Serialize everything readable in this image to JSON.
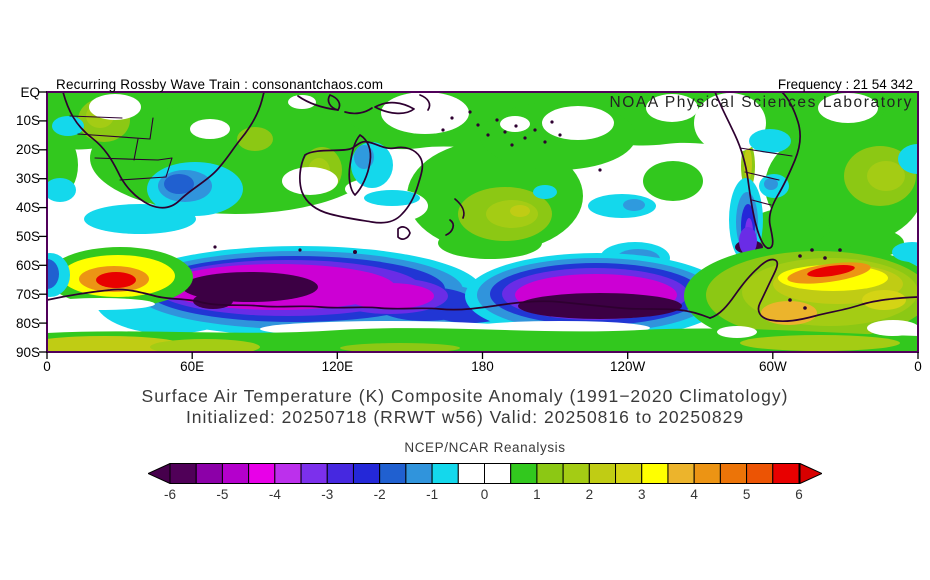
{
  "header": {
    "watermark": "Recurring Rossby Wave Train : consonantchaos.com",
    "frequency": "Frequency : 21 54 342",
    "organization": "NOAA Physical Sciences Laboratory"
  },
  "titles": {
    "line1": "Surface Air Temperature (K) Composite Anomaly (1991−2020 Climatology)",
    "line2": "Initialized: 20250718 (RRWT w56) Valid: 20250816 to 20250829"
  },
  "map": {
    "lat_labels": [
      "EQ",
      "10S",
      "20S",
      "30S",
      "40S",
      "50S",
      "60S",
      "70S",
      "80S",
      "90S"
    ],
    "lon_labels": [
      "0",
      "60E",
      "120E",
      "180",
      "120W",
      "60W",
      "0"
    ],
    "frame_color": "#50005a",
    "coastline_color": "#2e0030"
  },
  "colorbar": {
    "label": "NCEP/NCAR Reanalysis",
    "tick_labels": [
      "-6",
      "-5",
      "-4",
      "-3",
      "-2",
      "-1",
      "0",
      "1",
      "2",
      "3",
      "4",
      "5",
      "6"
    ],
    "cell_colors": [
      "#500058",
      "#8c00a8",
      "#b400cc",
      "#e800e8",
      "#bc30ec",
      "#7c30ec",
      "#4628e0",
      "#2428d8",
      "#2060d0",
      "#3094dc",
      "#14d8ec",
      "#ffffff",
      "#ffffff",
      "#32c81e",
      "#8cc814",
      "#a4cc14",
      "#c0cc14",
      "#d4d414",
      "#ffff00",
      "#ecb42c",
      "#ec9414",
      "#ec7408",
      "#ec5404",
      "#e80000"
    ],
    "arrow_left_color": "#46004c",
    "arrow_right_color": "#d80000"
  },
  "chart_data": {
    "type": "heatmap",
    "subtype": "filled-contour geographic anomaly map, Southern Hemisphere (cylindrical lat-lon)",
    "title": "Surface Air Temperature (K) Composite Anomaly (1991−2020 Climatology)",
    "subtitle": "Initialized: 20250718 (RRWT w56) Valid: 20250816 to 20250829",
    "source": "NCEP/NCAR Reanalysis",
    "organization": "NOAA Physical Sciences Laboratory",
    "watermark": "Recurring Rossby Wave Train : consonantchaos.com",
    "frequency": "21 54 342",
    "units": "K",
    "lat_axis": {
      "ticks": [
        "EQ",
        "10S",
        "20S",
        "30S",
        "40S",
        "50S",
        "60S",
        "70S",
        "80S",
        "90S"
      ],
      "range_deg": [
        0,
        -90
      ]
    },
    "lon_axis": {
      "ticks": [
        "0",
        "60E",
        "120E",
        "180",
        "120W",
        "60W",
        "0"
      ],
      "range_deg": [
        0,
        360
      ]
    },
    "colorbar": {
      "range": [
        -6,
        6
      ],
      "contour_interval": 0.5,
      "arrows_beyond_range": true
    },
    "features": [
      {
        "region": "Tropics and subtropics (EQ to ~35S, most longitudes)",
        "anomaly_K": "+0.5 to +1 (green) with scattered neutral white gaps"
      },
      {
        "region": "Mid-latitude band 40S-60S",
        "anomaly_K": "mostly 0 (white) with -0.5 to -1 cyan patches"
      },
      {
        "region": "Western South Africa coast",
        "anomaly_K": "-1 to -2"
      },
      {
        "region": "Central Australia",
        "anomaly_K": "-1 to -1.5"
      },
      {
        "region": "Patagonia / southern Chile",
        "anomaly_K": "-2 to -3.5"
      },
      {
        "region": "East Antarctic coastal Southern Ocean (~15E-170E, 60S-80S)",
        "anomaly_K": "-3 to below -6 (dark core < -6)"
      },
      {
        "region": "Ross Sea sector (~180-130W, 63S-80S)",
        "anomaly_K": "-3 to below -6 (dark core < -6)"
      },
      {
        "region": "Greenwich sector Southern Ocean (~5E-45E, 60S-70S)",
        "anomaly_K": "+3 to +6 (red core)"
      },
      {
        "region": "Weddell Sea / Antarctic Peninsula (~75W-10W, 58S-75S)",
        "anomaly_K": "+1 to +6 (orange-red streak)"
      },
      {
        "region": "Polar cap band 85S-90S",
        "anomaly_K": "+0.5 to +2 (green / yellow-green)"
      },
      {
        "region": "New Zealand / Tasman Sea",
        "anomaly_K": "+1 to +2.5"
      }
    ]
  }
}
